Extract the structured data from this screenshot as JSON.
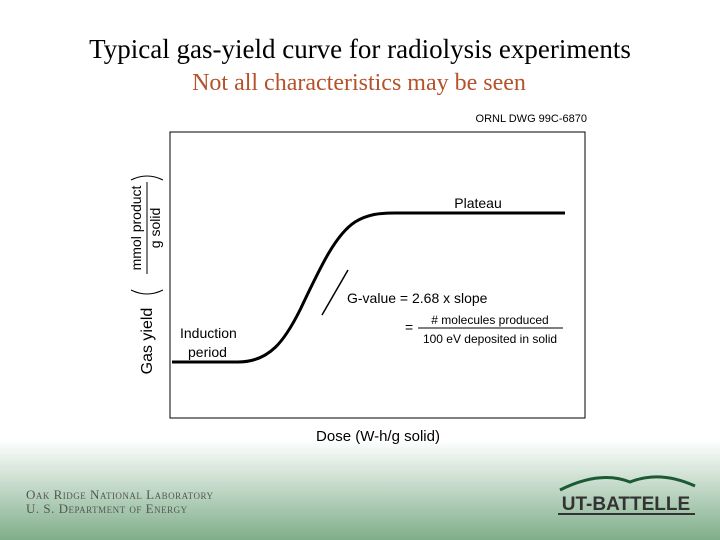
{
  "header": {
    "title": "Typical gas-yield curve for radiolysis experiments",
    "subtitle": "Not all characteristics may be seen"
  },
  "figure": {
    "drawing_id": "ORNL DWG 99C-6870",
    "plateau": "Plateau",
    "g_value": "G-value = 2.68 x slope",
    "equals": "=",
    "numerator": "# molecules produced",
    "denominator": "100 eV deposited in solid",
    "induction_1": "Induction",
    "induction_2": "period",
    "y_label": "Gas yield",
    "y_unit_numerator": "mmol product",
    "y_unit_denominator": "g solid",
    "x_label": "Dose (W-h/g solid)"
  },
  "footer": {
    "lab_1": "Oak Ridge National Laboratory",
    "lab_2": "U. S. Department of Energy",
    "logo": "UT-BATTELLE"
  }
}
